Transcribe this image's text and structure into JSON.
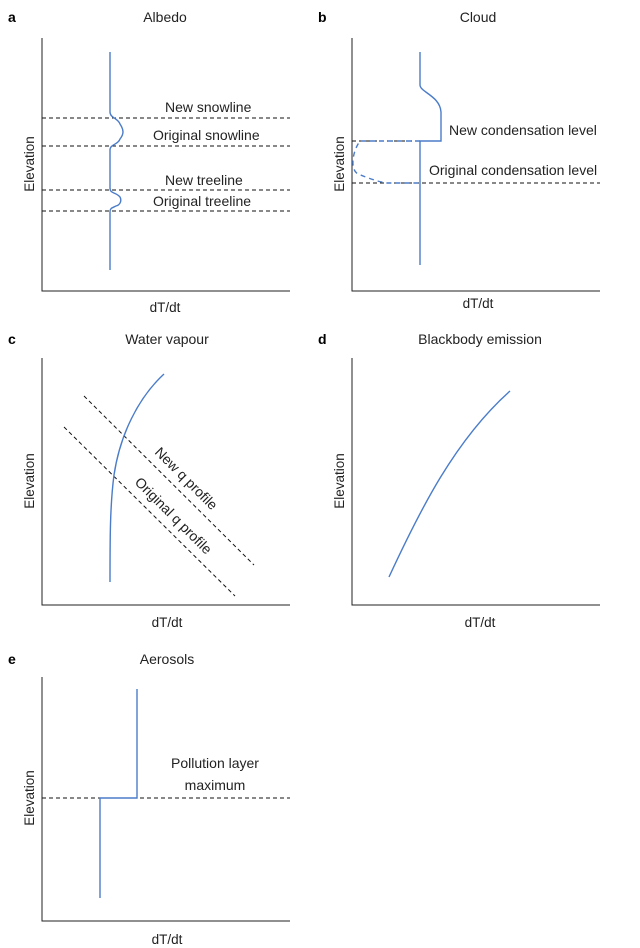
{
  "colors": {
    "curve": "#4a7cc9",
    "axis": "#222222",
    "guide": "#111111"
  },
  "panels": {
    "a": {
      "letter": "a",
      "title": "Albedo",
      "ylabel": "Elevation",
      "xlabel": "dT/dt",
      "lines": [
        "New snowline",
        "Original snowline",
        "New treeline",
        "Original treeline"
      ]
    },
    "b": {
      "letter": "b",
      "title": "Cloud",
      "ylabel": "Elevation",
      "xlabel": "dT/dt",
      "lines": [
        "New condensation level",
        "Original condensation level"
      ]
    },
    "c": {
      "letter": "c",
      "title": "Water vapour",
      "ylabel": "Elevation",
      "xlabel": "dT/dt",
      "lines": [
        "New q profile",
        "Original q profile"
      ]
    },
    "d": {
      "letter": "d",
      "title": "Blackbody emission",
      "ylabel": "Elevation",
      "xlabel": "dT/dt"
    },
    "e": {
      "letter": "e",
      "title": "Aerosols",
      "ylabel": "Elevation",
      "xlabel": "dT/dt",
      "annotation_line1": "Pollution layer",
      "annotation_line2": "maximum"
    }
  }
}
